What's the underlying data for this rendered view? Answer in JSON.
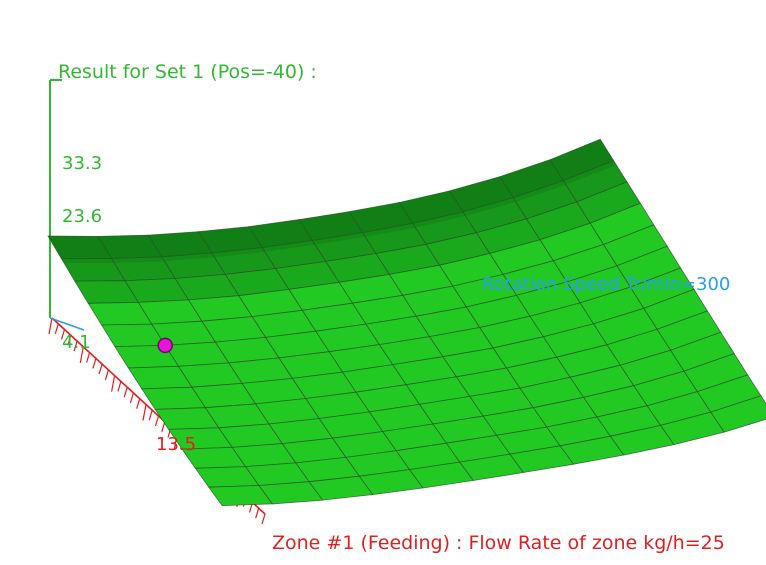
{
  "chart_data": {
    "type": "surface3d",
    "title": "Result for Set 1 (Pos=-40) :",
    "axis_left": {
      "ticks": [
        "33.3",
        "23.6",
        "4.1"
      ],
      "color": "#33b833"
    },
    "axis_front": {
      "label": "Zone #1 (Feeding) : Flow Rate of zone kg/h=25",
      "ticks": [
        "13.5"
      ],
      "color": "#e02020"
    },
    "axis_side": {
      "label": "Rotation Speed Tr/min=300",
      "color": "#2a9fe0"
    },
    "surface": {
      "rows": 14,
      "cols": 12,
      "z_grid": [
        [
          33.0,
          30.5,
          28.4,
          26.8,
          25.6,
          24.9,
          24.4,
          24.2,
          24.6,
          25.6,
          27.3,
          29.8
        ],
        [
          31.3,
          28.9,
          26.9,
          25.4,
          24.3,
          23.6,
          23.1,
          22.9,
          23.3,
          24.3,
          26.0,
          28.4
        ],
        [
          29.6,
          27.3,
          25.4,
          24.0,
          23.0,
          22.3,
          21.8,
          21.6,
          22.0,
          22.9,
          24.6,
          27.0
        ],
        [
          28.0,
          25.8,
          24.0,
          22.6,
          21.7,
          21.0,
          20.5,
          20.3,
          20.7,
          21.6,
          23.2,
          25.6
        ],
        [
          26.5,
          24.3,
          22.6,
          21.3,
          20.4,
          19.7,
          19.2,
          19.0,
          19.4,
          20.3,
          21.8,
          24.1
        ],
        [
          25.0,
          22.9,
          21.3,
          20.0,
          19.1,
          18.4,
          17.9,
          17.7,
          18.1,
          18.9,
          20.4,
          22.7
        ],
        [
          23.6,
          21.6,
          20.0,
          18.8,
          17.9,
          17.2,
          16.7,
          16.5,
          16.8,
          17.6,
          19.0,
          21.2
        ],
        [
          22.3,
          20.3,
          18.8,
          17.6,
          16.7,
          16.1,
          15.6,
          15.3,
          15.6,
          16.3,
          17.6,
          19.8
        ],
        [
          21.1,
          19.1,
          17.6,
          16.5,
          15.6,
          15.0,
          14.5,
          14.2,
          14.4,
          15.0,
          16.3,
          18.3
        ],
        [
          20.0,
          18.0,
          16.5,
          15.4,
          14.6,
          14.0,
          13.5,
          13.1,
          13.3,
          13.8,
          15.0,
          16.9
        ],
        [
          19.0,
          17.0,
          15.5,
          14.4,
          13.6,
          13.0,
          12.5,
          12.1,
          12.2,
          12.6,
          13.7,
          15.5
        ],
        [
          18.1,
          16.1,
          14.6,
          13.5,
          12.7,
          12.1,
          11.6,
          11.2,
          11.2,
          11.5,
          12.5,
          14.1
        ],
        [
          17.3,
          15.3,
          13.8,
          12.7,
          11.9,
          11.3,
          10.8,
          10.4,
          10.3,
          10.5,
          11.3,
          12.8
        ],
        [
          16.6,
          14.6,
          13.1,
          12.0,
          11.2,
          10.6,
          10.1,
          9.7,
          9.5,
          9.6,
          10.2,
          11.5
        ]
      ]
    },
    "marker": {
      "row": 5,
      "col": 1,
      "color": "#e815d8"
    },
    "colors": {
      "surface_light": "#22c922",
      "surface_dark": "#0d6f14",
      "grid": "#2a4d2a"
    }
  }
}
